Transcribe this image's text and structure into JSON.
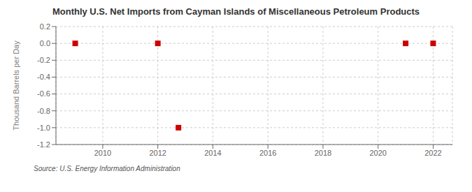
{
  "chart_data": {
    "type": "scatter",
    "title": "Monthly U.S. Net Imports from Cayman Islands of Miscellaneous Petroleum Products",
    "y_label": "Thousand Barrels per Day",
    "annotations": [
      "Source: U.S. Energy Information Administration"
    ],
    "x": [
      2009.0,
      2012.0,
      2012.75,
      2021.0,
      2022.0
    ],
    "values": [
      0.0,
      0.0,
      -1.0,
      0.0,
      0.0
    ],
    "color": "#cc0000",
    "marker": "square",
    "xlim": [
      2008.3,
      2022.7
    ],
    "ylim": [
      -1.2,
      0.2
    ],
    "xticks": [
      2010,
      2012,
      2014,
      2016,
      2018,
      2020,
      2022
    ],
    "yticks": [
      -1.2,
      {
        "value": -1.0,
        "label": "-1.0"
      },
      -0.8,
      -0.6,
      -0.4,
      -0.2,
      {
        "value": 0.0,
        "label": "0.0"
      },
      0.2
    ],
    "grid": true
  }
}
